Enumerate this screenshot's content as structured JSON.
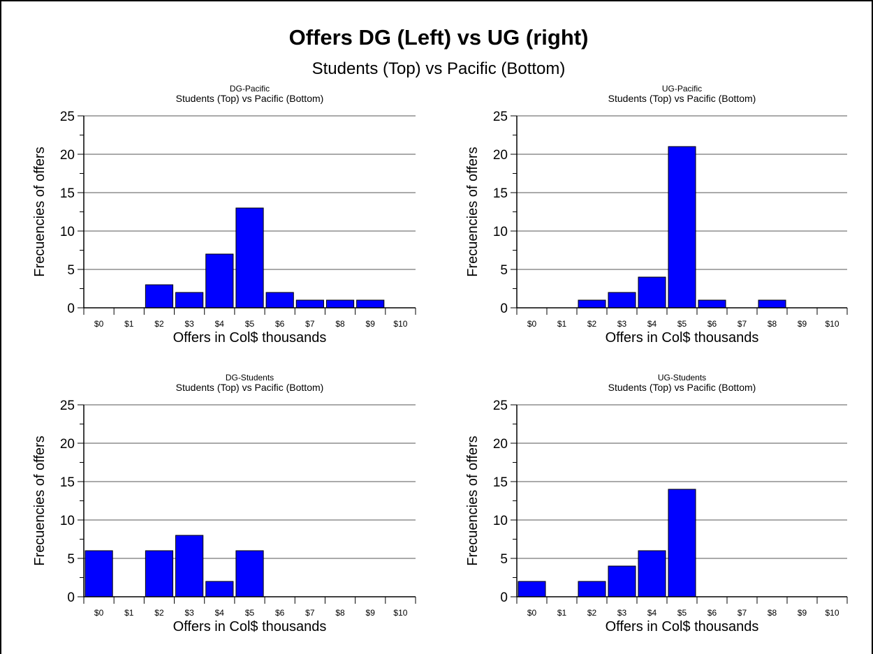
{
  "title": "Offers DG (Left) vs UG (right)",
  "subtitle": "Students (Top) vs Pacific (Bottom)",
  "colors": {
    "bar": "#0000ff",
    "bar_stroke": "#000000",
    "grid": "#555555",
    "frame": "#000000"
  },
  "chart_data": [
    {
      "type": "bar",
      "title": "DG-Pacific",
      "subtitle": "Students (Top) vs Pacific (Bottom)",
      "xlabel": "Offers in Col$ thousands",
      "ylabel": "Frecuencies of offers",
      "categories": [
        "$0",
        "$1",
        "$2",
        "$3",
        "$4",
        "$5",
        "$6",
        "$7",
        "$8",
        "$9",
        "$10"
      ],
      "values": [
        0,
        0,
        3,
        2,
        7,
        13,
        2,
        1,
        1,
        1,
        0
      ],
      "ylim": [
        0,
        25
      ],
      "yticks": [
        "0",
        "5",
        "10",
        "15",
        "20",
        "25"
      ],
      "grid": true
    },
    {
      "type": "bar",
      "title": "UG-Pacific",
      "subtitle": "Students (Top) vs Pacific (Bottom)",
      "xlabel": "Offers in Col$ thousands",
      "ylabel": "Frecuencies of offers",
      "categories": [
        "$0",
        "$1",
        "$2",
        "$3",
        "$4",
        "$5",
        "$6",
        "$7",
        "$8",
        "$9",
        "$10"
      ],
      "values": [
        0,
        0,
        1,
        2,
        4,
        21,
        1,
        0,
        1,
        0,
        0
      ],
      "ylim": [
        0,
        25
      ],
      "yticks": [
        "0",
        "5",
        "10",
        "15",
        "20",
        "25"
      ],
      "grid": true
    },
    {
      "type": "bar",
      "title": "DG-Students",
      "subtitle": "Students (Top) vs Pacific (Bottom)",
      "xlabel": "Offers in Col$ thousands",
      "ylabel": "Frecuencies of offers",
      "categories": [
        "$0",
        "$1",
        "$2",
        "$3",
        "$4",
        "$5",
        "$6",
        "$7",
        "$8",
        "$9",
        "$10"
      ],
      "values": [
        6,
        0,
        6,
        8,
        2,
        6,
        0,
        0,
        0,
        0,
        0
      ],
      "ylim": [
        0,
        25
      ],
      "yticks": [
        "0",
        "5",
        "10",
        "15",
        "20",
        "25"
      ],
      "grid": true
    },
    {
      "type": "bar",
      "title": "UG-Students",
      "subtitle": "Students (Top) vs Pacific (Bottom)",
      "xlabel": "Offers in Col$ thousands",
      "ylabel": "Frecuencies of offers",
      "categories": [
        "$0",
        "$1",
        "$2",
        "$3",
        "$4",
        "$5",
        "$6",
        "$7",
        "$8",
        "$9",
        "$10"
      ],
      "values": [
        2,
        0,
        2,
        4,
        6,
        14,
        0,
        0,
        0,
        0,
        0
      ],
      "ylim": [
        0,
        25
      ],
      "yticks": [
        "0",
        "5",
        "10",
        "15",
        "20",
        "25"
      ],
      "grid": true
    }
  ]
}
